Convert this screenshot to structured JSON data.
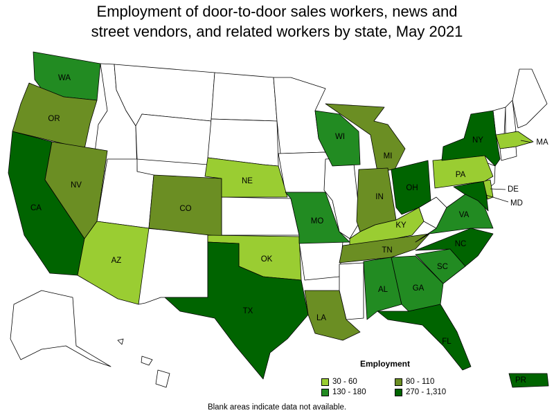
{
  "title": {
    "line1": "Employment of door-to-door sales workers, news and",
    "line2": "street vendors, and related workers by state, May 2021"
  },
  "colors": {
    "none": "#ffffff",
    "c1": "#9acd32",
    "c2": "#6b8e23",
    "c3": "#228b22",
    "c4": "#006400"
  },
  "legend": {
    "title": "Employment",
    "items": [
      {
        "label": "30 - 60",
        "color": "#9acd32"
      },
      {
        "label": "80 - 110",
        "color": "#6b8e23"
      },
      {
        "label": "130 - 180",
        "color": "#228b22"
      },
      {
        "label": "270 - 1,310",
        "color": "#006400"
      }
    ]
  },
  "states": [
    {
      "abbr": "WA",
      "cat": "c3"
    },
    {
      "abbr": "OR",
      "cat": "c2"
    },
    {
      "abbr": "CA",
      "cat": "c4"
    },
    {
      "abbr": "NV",
      "cat": "c2"
    },
    {
      "abbr": "AZ",
      "cat": "c1"
    },
    {
      "abbr": "CO",
      "cat": "c2"
    },
    {
      "abbr": "NE",
      "cat": "c1"
    },
    {
      "abbr": "OK",
      "cat": "c1"
    },
    {
      "abbr": "TX",
      "cat": "c4"
    },
    {
      "abbr": "MO",
      "cat": "c3"
    },
    {
      "abbr": "LA",
      "cat": "c2"
    },
    {
      "abbr": "WI",
      "cat": "c3"
    },
    {
      "abbr": "MI",
      "cat": "c2"
    },
    {
      "abbr": "IN",
      "cat": "c2"
    },
    {
      "abbr": "OH",
      "cat": "c4"
    },
    {
      "abbr": "KY",
      "cat": "c1"
    },
    {
      "abbr": "TN",
      "cat": "c2"
    },
    {
      "abbr": "AL",
      "cat": "c3"
    },
    {
      "abbr": "GA",
      "cat": "c3"
    },
    {
      "abbr": "FL",
      "cat": "c4"
    },
    {
      "abbr": "SC",
      "cat": "c3"
    },
    {
      "abbr": "NC",
      "cat": "c4"
    },
    {
      "abbr": "VA",
      "cat": "c3"
    },
    {
      "abbr": "PA",
      "cat": "c1"
    },
    {
      "abbr": "NY",
      "cat": "c4"
    },
    {
      "abbr": "MA",
      "cat": "c1"
    },
    {
      "abbr": "DE",
      "cat": "c1"
    },
    {
      "abbr": "MD",
      "cat": "c4"
    },
    {
      "abbr": "PR",
      "cat": "c4"
    },
    {
      "abbr": "",
      "cat": "none"
    }
  ],
  "note": "Blank areas indicate data not available."
}
